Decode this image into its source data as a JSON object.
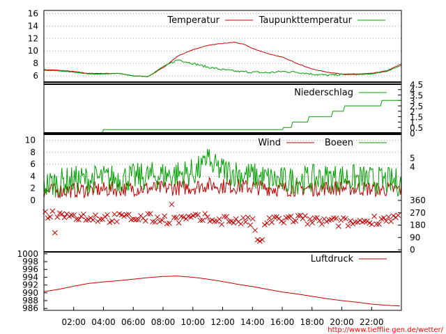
{
  "colors": {
    "red": "#bf0000",
    "green": "#00a000",
    "axis": "#000000",
    "grid": "#a0a0a0",
    "link": "#ff0000"
  },
  "x_tick_labels": [
    "02:00",
    "04:00",
    "06:00",
    "08:00",
    "10:00",
    "12:00",
    "14:00",
    "16:00",
    "18:00",
    "20:00",
    "22:00"
  ],
  "source_url": "http://www.tiefflie gen.de/wetter/",
  "chart_data": [
    {
      "type": "line",
      "id": "temperature",
      "x_unit": "hour of day",
      "xlim": [
        0,
        24
      ],
      "ylim": [
        5,
        16.5
      ],
      "y_ticks": [
        6,
        8,
        10,
        12,
        14,
        16
      ],
      "grid": true,
      "legend_position": "top",
      "series": [
        {
          "name": "Temperatur",
          "color": "#bf0000",
          "x": [
            0,
            1,
            2,
            3,
            4,
            5,
            6,
            7,
            8,
            9,
            10,
            11,
            12,
            12.8,
            13.5,
            14,
            15,
            16,
            17,
            18,
            19,
            20,
            21,
            22,
            23,
            24
          ],
          "y": [
            7.0,
            6.9,
            6.7,
            6.4,
            6.4,
            6.4,
            6.0,
            5.9,
            7.3,
            9.2,
            10.2,
            10.9,
            11.2,
            11.4,
            11.0,
            10.4,
            9.6,
            9.0,
            8.0,
            7.1,
            6.6,
            6.3,
            6.3,
            6.4,
            6.8,
            7.9
          ]
        },
        {
          "name": "Taupunkttemperatur",
          "color": "#00a000",
          "x": [
            0,
            1,
            2,
            3,
            4,
            5,
            6,
            7,
            8,
            9,
            10,
            11,
            12,
            13,
            14,
            15,
            16,
            17,
            18,
            19,
            20,
            21,
            22,
            23,
            24
          ],
          "y": [
            6.9,
            6.8,
            6.6,
            6.3,
            6.3,
            6.4,
            6.0,
            5.9,
            7.5,
            8.6,
            8.0,
            7.4,
            7.0,
            6.7,
            6.6,
            6.5,
            6.7,
            6.6,
            6.3,
            6.1,
            6.2,
            6.2,
            6.3,
            6.7,
            7.7
          ]
        }
      ]
    },
    {
      "type": "line",
      "id": "precipitation",
      "x_unit": "hour of day",
      "xlim": [
        0,
        24
      ],
      "ylim": [
        0,
        4.5
      ],
      "y_ticks_right": [
        "0",
        "0.5",
        "1",
        "1.5",
        "2",
        "2.5",
        "3",
        "3.5",
        "4",
        "4.5"
      ],
      "legend_position": "top",
      "series": [
        {
          "name": "Niederschlag",
          "color": "#00a000",
          "x": [
            0,
            3.9,
            4.0,
            16.0,
            16.1,
            16.6,
            16.7,
            17.7,
            17.8,
            19.3,
            19.4,
            20.1,
            20.2,
            22.6,
            22.7,
            24
          ],
          "y": [
            0,
            0,
            0.3,
            0.3,
            0.5,
            0.5,
            1.0,
            1.0,
            1.5,
            1.5,
            2.0,
            2.0,
            2.5,
            2.5,
            3.0,
            3.0
          ]
        }
      ]
    },
    {
      "type": "line",
      "id": "wind",
      "x_unit": "hour of day",
      "xlim": [
        0,
        24
      ],
      "ylim": [
        0,
        11
      ],
      "y_ticks": [
        0,
        2,
        4,
        6,
        8,
        10
      ],
      "y_ticks_right": [
        "4",
        "5"
      ],
      "legend_position": "top",
      "series": [
        {
          "name": "Wind",
          "color": "#bf0000",
          "x": [
            0,
            2,
            4,
            6,
            8,
            10,
            11,
            12,
            14,
            16,
            18,
            20,
            22,
            24
          ],
          "y": [
            1.5,
            1.7,
            1.8,
            2.0,
            2.0,
            2.2,
            2.6,
            2.4,
            2.2,
            1.9,
            2.0,
            2.1,
            1.9,
            1.8
          ]
        },
        {
          "name": "Boeen",
          "color": "#00a000",
          "x": [
            0,
            2,
            4,
            6,
            8,
            10,
            11,
            12,
            14,
            16,
            18,
            20,
            22,
            24
          ],
          "y": [
            2.6,
            3.4,
            3.6,
            3.8,
            4.2,
            4.6,
            5.8,
            5.0,
            4.0,
            3.2,
            3.6,
            3.8,
            3.4,
            3.0
          ]
        }
      ]
    },
    {
      "type": "scatter",
      "id": "wind_direction",
      "x_unit": "hour of day",
      "xlim": [
        0,
        24
      ],
      "ylim": [
        0,
        360
      ],
      "y_ticks_right": [
        0,
        90,
        180,
        270,
        360
      ],
      "series": [
        {
          "color": "#bf0000",
          "x": [
            0,
            1,
            2,
            3,
            4,
            5,
            6,
            7,
            8,
            9,
            10,
            11,
            12,
            13,
            14,
            14.5,
            15,
            16,
            17,
            18,
            19,
            20,
            21,
            22,
            23,
            24
          ],
          "y": [
            265,
            255,
            245,
            240,
            235,
            230,
            235,
            230,
            225,
            220,
            225,
            230,
            220,
            215,
            200,
            40,
            210,
            220,
            225,
            210,
            205,
            200,
            200,
            215,
            230,
            235
          ]
        }
      ]
    },
    {
      "type": "line",
      "id": "pressure",
      "x_unit": "hour of day",
      "xlim": [
        0,
        24
      ],
      "ylim": [
        985.5,
        1000.5
      ],
      "y_ticks": [
        986,
        988,
        990,
        992,
        994,
        996,
        998,
        1000
      ],
      "legend_position": "top",
      "series": [
        {
          "name": "Luftdruck",
          "color": "#bf0000",
          "x": [
            0,
            1,
            2,
            3,
            4,
            5,
            6,
            7,
            8,
            9,
            10,
            11,
            12,
            13,
            14,
            15,
            16,
            17,
            18,
            19,
            20,
            21,
            22,
            23,
            24
          ],
          "y": [
            990.3,
            990.9,
            991.7,
            992.4,
            992.8,
            993.1,
            993.5,
            993.9,
            994.2,
            994.3,
            994.0,
            993.5,
            992.9,
            992.2,
            991.6,
            990.9,
            990.2,
            989.7,
            989.1,
            988.5,
            988.0,
            987.6,
            987.1,
            986.8,
            986.6
          ]
        }
      ]
    }
  ]
}
